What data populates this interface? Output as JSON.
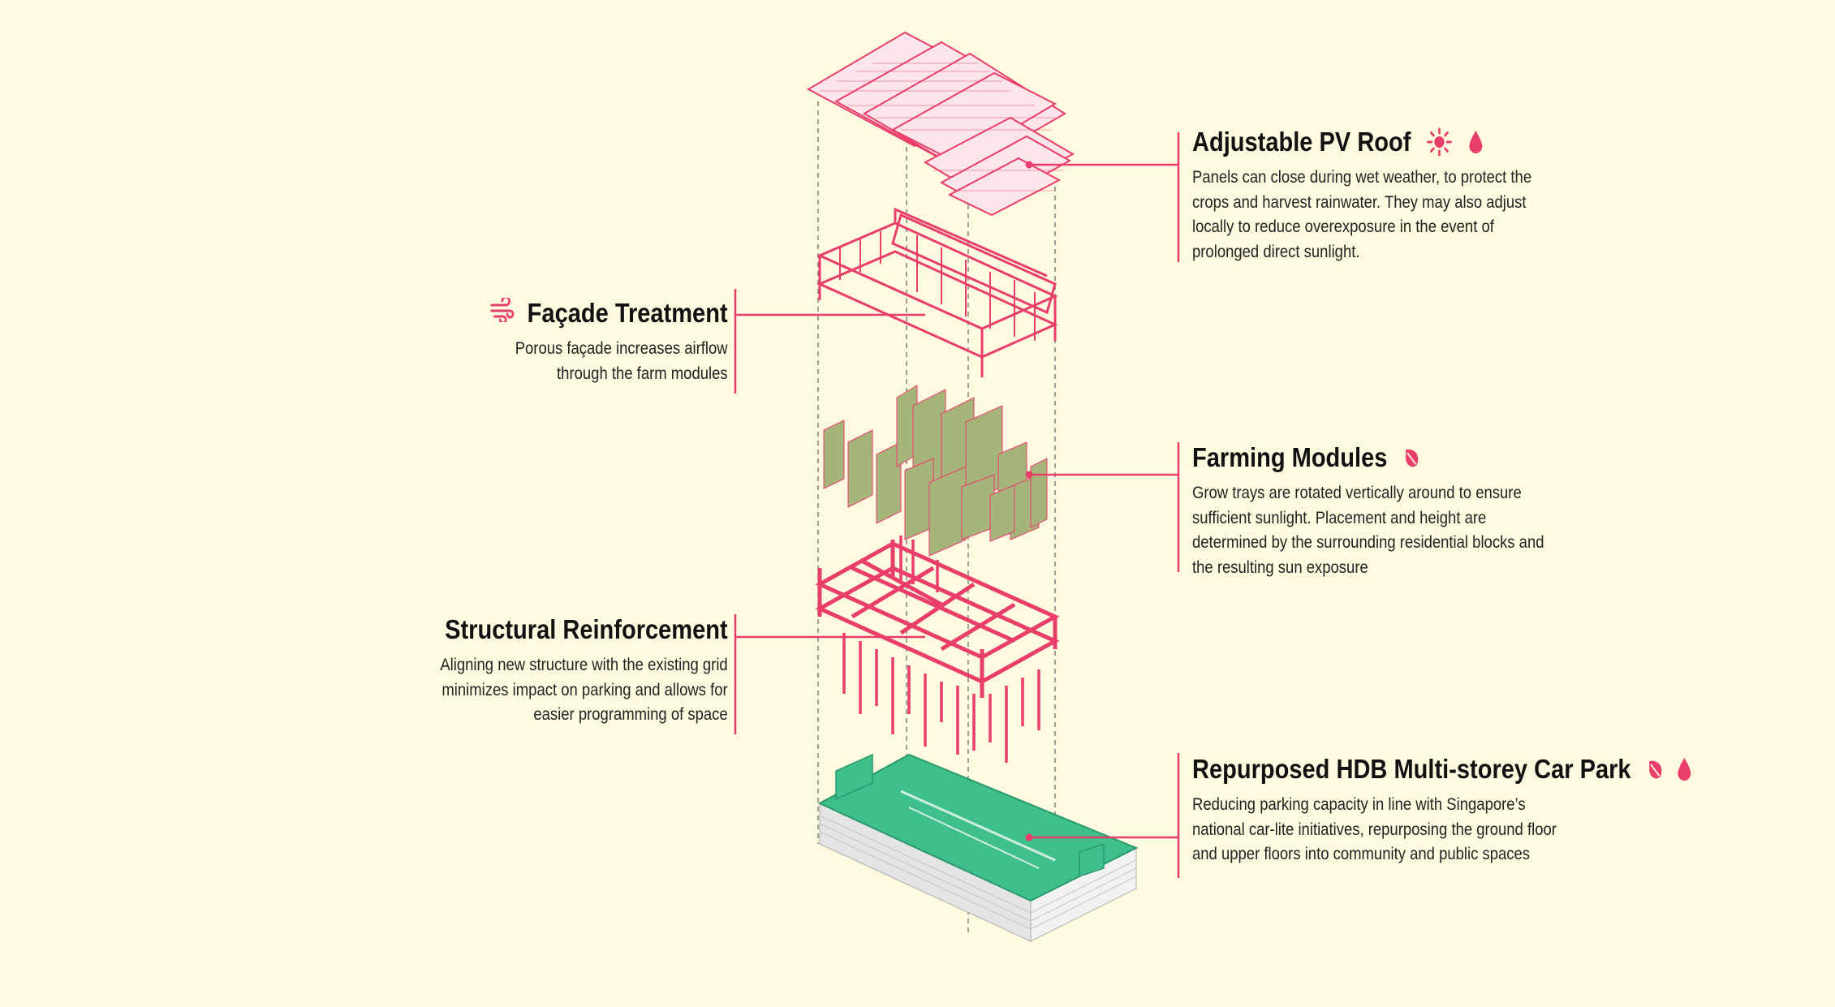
{
  "colors": {
    "background": "#fdfae0",
    "accent": "#e93d6a",
    "farm_green": "#a6b47a",
    "carpark_green": "#3fbf8c",
    "text": "#111111"
  },
  "labels": {
    "pv_roof": {
      "title": "Adjustable PV Roof",
      "body": "Panels can close during wet weather, to protect the\ncrops and harvest rainwater. They may also adjust\nlocally to reduce overexposure in the event of\nprolonged direct sunlight.",
      "icons": [
        "sun-icon",
        "water-drop-icon"
      ]
    },
    "facade": {
      "title": "Façade Treatment",
      "body": "Porous façade increases airflow\nthrough the farm modules",
      "icons": [
        "wind-icon"
      ]
    },
    "farming": {
      "title": "Farming Modules",
      "body": "Grow trays are rotated vertically around to ensure\nsufficient sunlight. Placement and height are\ndetermined by the surrounding residential blocks and\nthe resulting sun exposure",
      "icons": [
        "leaf-icon"
      ]
    },
    "structural": {
      "title": "Structural Reinforcement",
      "body": "Aligning new structure with the existing grid\nminimizes impact on parking and allows for\neasier programming of space",
      "icons": []
    },
    "carpark": {
      "title": "Repurposed HDB Multi-storey Car Park",
      "body": "Reducing parking capacity in line with Singapore’s\nnational car-lite initiatives, repurposing the ground floor\nand upper floors into community and public spaces",
      "icons": [
        "leaf-icon",
        "water-drop-icon"
      ]
    }
  }
}
